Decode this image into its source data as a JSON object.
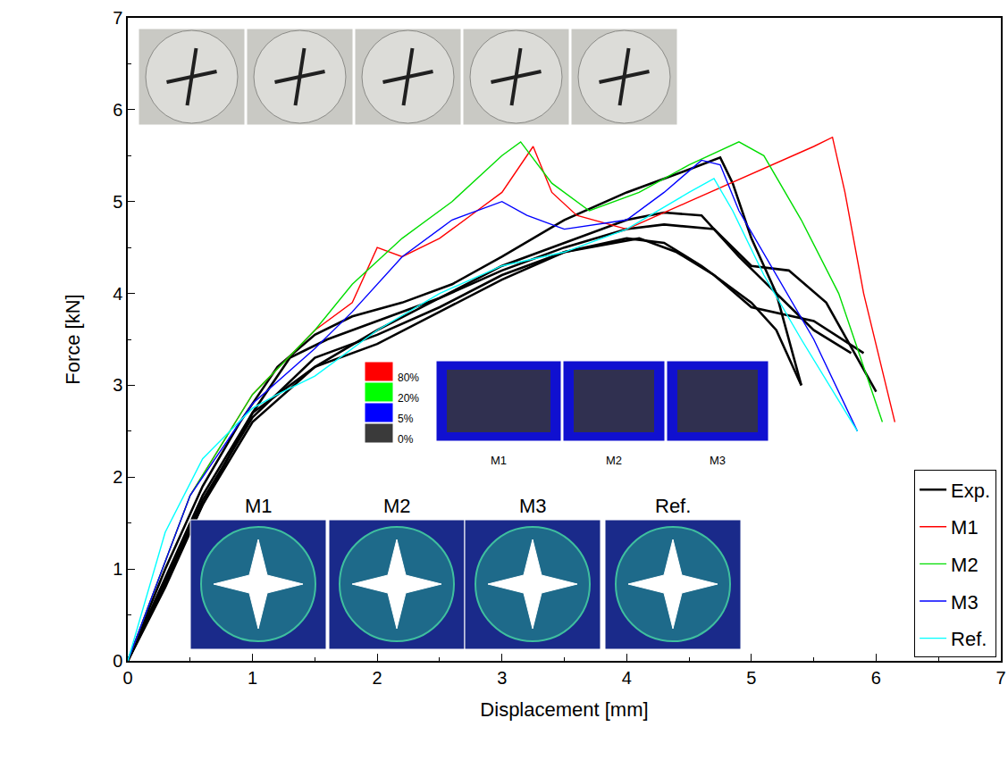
{
  "chart_data": {
    "type": "line",
    "x_label": "Displacement [mm]",
    "y_label": "Force [kN]",
    "xlim": [
      0,
      7
    ],
    "ylim": [
      0,
      7
    ],
    "xticks": [
      0,
      1,
      2,
      3,
      4,
      5,
      6,
      7
    ],
    "yticks": [
      0,
      1,
      2,
      3,
      4,
      5,
      6,
      7
    ],
    "grid": false,
    "legend": "lower right",
    "series": [
      {
        "name": "Exp.",
        "color": "#000000",
        "line_style": "solid",
        "x": [
          0,
          0.3,
          0.6,
          0.9,
          1.2,
          1.5,
          1.8,
          2.2,
          2.6,
          3.0,
          3.5,
          4.0,
          4.5,
          4.75,
          4.85,
          5.0,
          5.2,
          5.4
        ],
        "values": [
          0,
          1.0,
          1.9,
          2.6,
          3.2,
          3.55,
          3.75,
          3.9,
          4.1,
          4.4,
          4.8,
          5.1,
          5.35,
          5.48,
          5.2,
          4.6,
          4.0,
          3.0
        ]
      },
      {
        "name": "Exp.",
        "color": "#000000",
        "line_style": "solid",
        "x": [
          0,
          0.3,
          0.6,
          1.0,
          1.5,
          2.0,
          2.5,
          3.0,
          3.5,
          4.0,
          4.3,
          4.6,
          4.9,
          5.2,
          5.5,
          5.8
        ],
        "values": [
          0,
          0.9,
          1.8,
          2.7,
          3.2,
          3.6,
          3.95,
          4.3,
          4.55,
          4.8,
          4.88,
          4.85,
          4.4,
          4.0,
          3.6,
          3.35
        ]
      },
      {
        "name": "Exp.",
        "color": "#000000",
        "line_style": "solid",
        "x": [
          0,
          0.3,
          0.6,
          1.0,
          1.3,
          1.6,
          2.0,
          2.5,
          3.0,
          3.5,
          4.0,
          4.3,
          4.7,
          5.0,
          5.3,
          5.6,
          6.0
        ],
        "values": [
          0,
          0.85,
          1.7,
          2.7,
          3.3,
          3.5,
          3.7,
          3.95,
          4.25,
          4.5,
          4.7,
          4.75,
          4.7,
          4.3,
          4.25,
          3.9,
          2.93
        ]
      },
      {
        "name": "Exp.",
        "color": "#000000",
        "line_style": "solid",
        "x": [
          0,
          0.3,
          0.6,
          1.0,
          1.5,
          2.0,
          2.5,
          3.0,
          3.5,
          4.0,
          4.3,
          4.6,
          5.0,
          5.2,
          5.4
        ],
        "values": [
          0,
          0.8,
          1.7,
          2.6,
          3.2,
          3.45,
          3.8,
          4.15,
          4.45,
          4.6,
          4.55,
          4.3,
          3.9,
          3.6,
          3.0
        ]
      },
      {
        "name": "Exp.",
        "color": "#000000",
        "line_style": "solid",
        "x": [
          0,
          0.3,
          0.6,
          1.0,
          1.5,
          2.0,
          2.5,
          3.0,
          3.5,
          4.1,
          4.4,
          4.7,
          5.0,
          5.5,
          5.9
        ],
        "values": [
          0,
          0.85,
          1.75,
          2.65,
          3.3,
          3.55,
          3.85,
          4.2,
          4.45,
          4.6,
          4.45,
          4.2,
          3.85,
          3.7,
          3.35
        ]
      },
      {
        "name": "M1",
        "color": "#ff0000",
        "line_style": "solid",
        "x": [
          0,
          0.5,
          1.0,
          1.5,
          1.8,
          2.0,
          2.2,
          2.5,
          2.8,
          3.0,
          3.25,
          3.4,
          3.6,
          4.0,
          4.5,
          5.0,
          5.5,
          5.65,
          5.75,
          5.9,
          6.15
        ],
        "values": [
          0,
          1.8,
          2.9,
          3.6,
          3.9,
          4.5,
          4.4,
          4.6,
          4.9,
          5.1,
          5.6,
          5.1,
          4.85,
          4.7,
          5.0,
          5.3,
          5.6,
          5.7,
          5.1,
          4.0,
          2.6
        ]
      },
      {
        "name": "M2",
        "color": "#00dd00",
        "line_style": "solid",
        "x": [
          0,
          0.5,
          1.0,
          1.5,
          1.8,
          2.2,
          2.6,
          3.0,
          3.15,
          3.4,
          3.7,
          4.1,
          4.5,
          4.9,
          5.1,
          5.4,
          5.7,
          6.05
        ],
        "values": [
          0,
          1.8,
          2.9,
          3.6,
          4.1,
          4.6,
          5.0,
          5.5,
          5.65,
          5.2,
          4.9,
          5.1,
          5.4,
          5.65,
          5.5,
          4.8,
          4.0,
          2.6
        ]
      },
      {
        "name": "M3",
        "color": "#0000ff",
        "line_style": "solid",
        "x": [
          0,
          0.5,
          1.0,
          1.5,
          1.8,
          2.2,
          2.6,
          3.0,
          3.2,
          3.5,
          4.0,
          4.3,
          4.6,
          4.75,
          4.9,
          5.2,
          5.5,
          5.85
        ],
        "values": [
          0,
          1.8,
          2.8,
          3.4,
          3.8,
          4.4,
          4.8,
          5.0,
          4.85,
          4.7,
          4.8,
          5.1,
          5.45,
          5.4,
          4.9,
          4.2,
          3.5,
          2.5
        ]
      },
      {
        "name": "Ref.",
        "color": "#00ffff",
        "line_style": "solid",
        "x": [
          0,
          0.3,
          0.6,
          1.0,
          1.2,
          1.5,
          2.0,
          2.5,
          3.0,
          3.5,
          4.0,
          4.5,
          4.7,
          4.85,
          5.1,
          5.4,
          5.85
        ],
        "values": [
          0,
          1.4,
          2.2,
          2.75,
          2.9,
          3.1,
          3.6,
          4.0,
          4.3,
          4.45,
          4.7,
          5.1,
          5.25,
          4.9,
          4.2,
          3.5,
          2.5
        ]
      }
    ],
    "insets": {
      "fe_labels": [
        "M1",
        "M2",
        "M3",
        "Ref."
      ],
      "damage_scale": {
        "labels": [
          "80%",
          "20%",
          "5%",
          "0%"
        ],
        "colors": [
          "#ff0000",
          "#00ff00",
          "#0000ff",
          "#3a3a3a"
        ]
      },
      "damage_maps": [
        "M1",
        "M2",
        "M3"
      ]
    }
  }
}
